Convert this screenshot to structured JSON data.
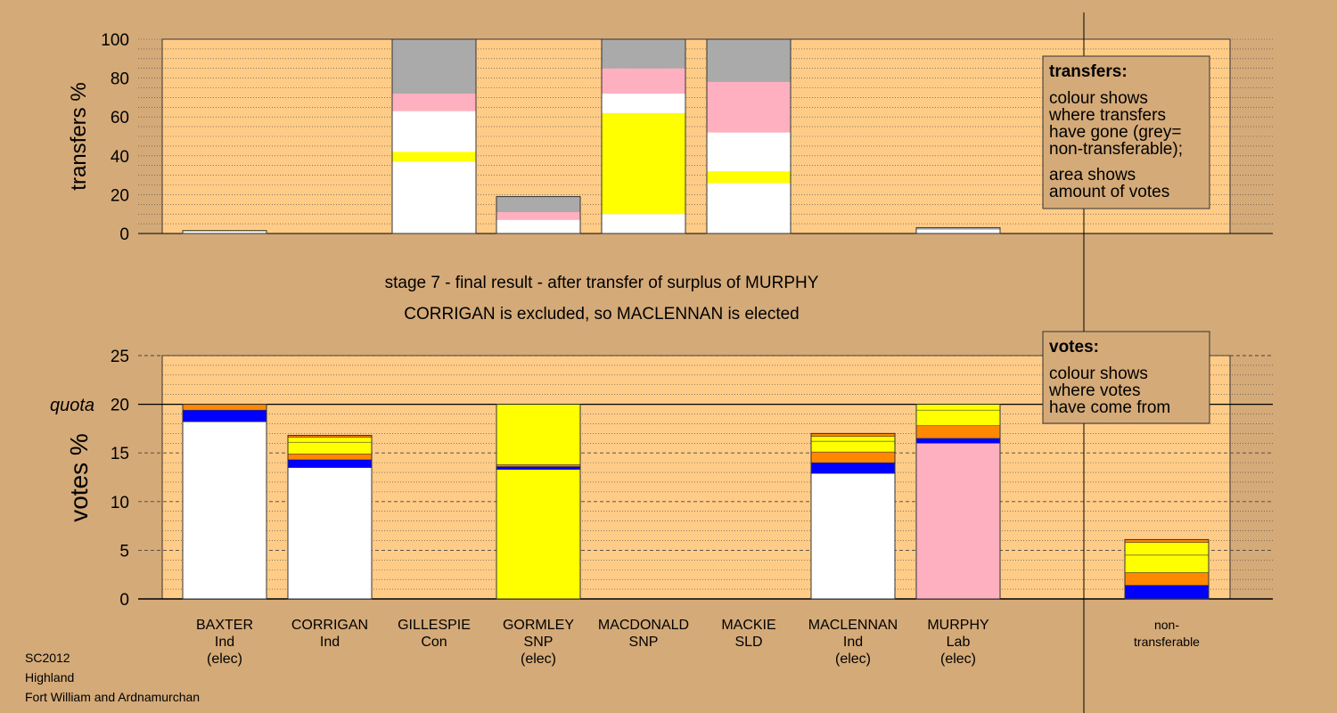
{
  "header": {
    "stage_line": "stage 7 - final result - after transfer of surplus of MURPHY",
    "result_line": "CORRIGAN is excluded, so MACLENNAN is elected"
  },
  "footer": {
    "election": "SC2012",
    "council": "Highland",
    "ward": "Fort William and Ardnamurchan"
  },
  "legend_boxes": {
    "transfers": {
      "title": "transfers:",
      "lines": [
        "colour shows",
        "where transfers",
        "have gone (grey=",
        "non-transferable);"
      ],
      "lines2": [
        "area shows",
        "amount of votes"
      ]
    },
    "votes": {
      "title": "votes:",
      "lines": [
        "colour shows",
        "where votes",
        "have come from"
      ]
    }
  },
  "colors": {
    "background": "#d4aa78",
    "plot_bg": "#ffcc88",
    "white": "#ffffff",
    "blue": "#0000ff",
    "orange": "#ff8800",
    "yellow": "#ffff00",
    "pink": "#ffb0c0",
    "grey": "#aaaaaa"
  },
  "chart_data": [
    {
      "type": "bar",
      "stacked": true,
      "ylabel": "transfers %",
      "ylim": [
        0,
        100
      ],
      "yticks": [
        "0",
        "20",
        "40",
        "60",
        "80",
        "100"
      ],
      "grid": "dotted",
      "bars": [
        {
          "candidate": "BAXTER",
          "segments": [
            {
              "color": "white",
              "from": 0,
              "to": 1
            },
            {
              "color": "yellow",
              "from": 1,
              "to": 1.5
            }
          ]
        },
        {
          "candidate": "CORRIGAN",
          "segments": []
        },
        {
          "candidate": "GILLESPIE",
          "segments": [
            {
              "color": "white",
              "from": 0,
              "to": 37
            },
            {
              "color": "yellow",
              "from": 37,
              "to": 42
            },
            {
              "color": "white",
              "from": 42,
              "to": 63
            },
            {
              "color": "pink",
              "from": 63,
              "to": 72
            },
            {
              "color": "grey",
              "from": 72,
              "to": 100
            }
          ]
        },
        {
          "candidate": "GORMLEY",
          "segments": [
            {
              "color": "white",
              "from": 0,
              "to": 7
            },
            {
              "color": "pink",
              "from": 7,
              "to": 11
            },
            {
              "color": "grey",
              "from": 11,
              "to": 19
            }
          ]
        },
        {
          "candidate": "MACDONALD",
          "segments": [
            {
              "color": "white",
              "from": 0,
              "to": 10
            },
            {
              "color": "yellow",
              "from": 10,
              "to": 62
            },
            {
              "color": "white",
              "from": 62,
              "to": 72
            },
            {
              "color": "pink",
              "from": 72,
              "to": 85
            },
            {
              "color": "grey",
              "from": 85,
              "to": 100
            }
          ]
        },
        {
          "candidate": "MACKIE",
          "segments": [
            {
              "color": "white",
              "from": 0,
              "to": 26
            },
            {
              "color": "yellow",
              "from": 26,
              "to": 32
            },
            {
              "color": "white",
              "from": 32,
              "to": 52
            },
            {
              "color": "pink",
              "from": 52,
              "to": 78
            },
            {
              "color": "grey",
              "from": 78,
              "to": 100
            }
          ]
        },
        {
          "candidate": "MACLENNAN",
          "segments": []
        },
        {
          "candidate": "MURPHY",
          "segments": [
            {
              "color": "white",
              "from": 0,
              "to": 2
            },
            {
              "color": "grey",
              "from": 2,
              "to": 3
            }
          ]
        }
      ]
    },
    {
      "type": "bar",
      "stacked": true,
      "ylabel": "votes %",
      "ylim": [
        0,
        25
      ],
      "yticks": [
        "0",
        "5",
        "10",
        "15",
        "20",
        "25"
      ],
      "quota_label": "quota",
      "quota": 20,
      "grid": "dotted",
      "bars": [
        {
          "name": "BAXTER",
          "party": "Ind",
          "status": "(elec)",
          "segments": [
            {
              "color": "white",
              "from": 0,
              "to": 18.2
            },
            {
              "color": "blue",
              "from": 18.2,
              "to": 19.4
            },
            {
              "color": "orange",
              "from": 19.4,
              "to": 20
            }
          ]
        },
        {
          "name": "CORRIGAN",
          "party": "Ind",
          "status": "",
          "segments": [
            {
              "color": "white",
              "from": 0,
              "to": 13.5
            },
            {
              "color": "blue",
              "from": 13.5,
              "to": 14.3
            },
            {
              "color": "orange",
              "from": 14.3,
              "to": 14.9
            },
            {
              "color": "yellow",
              "from": 14.9,
              "to": 16.1
            },
            {
              "color": "yellow",
              "from": 16.1,
              "to": 16.6
            },
            {
              "color": "orange",
              "from": 16.6,
              "to": 16.8
            }
          ]
        },
        {
          "name": "GILLESPIE",
          "party": "Con",
          "status": "",
          "segments": []
        },
        {
          "name": "GORMLEY",
          "party": "SNP",
          "status": "(elec)",
          "segments": [
            {
              "color": "yellow",
              "from": 0,
              "to": 13.3
            },
            {
              "color": "blue",
              "from": 13.3,
              "to": 13.6
            },
            {
              "color": "orange",
              "from": 13.6,
              "to": 13.8
            },
            {
              "color": "yellow",
              "from": 13.8,
              "to": 20
            }
          ]
        },
        {
          "name": "MACDONALD",
          "party": "SNP",
          "status": "",
          "segments": []
        },
        {
          "name": "MACKIE",
          "party": "SLD",
          "status": "",
          "segments": []
        },
        {
          "name": "MACLENNAN",
          "party": "Ind",
          "status": "(elec)",
          "segments": [
            {
              "color": "white",
              "from": 0,
              "to": 12.9
            },
            {
              "color": "blue",
              "from": 12.9,
              "to": 14.0
            },
            {
              "color": "orange",
              "from": 14.0,
              "to": 15.1
            },
            {
              "color": "yellow",
              "from": 15.1,
              "to": 16.2
            },
            {
              "color": "yellow",
              "from": 16.2,
              "to": 16.7
            },
            {
              "color": "orange",
              "from": 16.7,
              "to": 17.0
            }
          ]
        },
        {
          "name": "MURPHY",
          "party": "Lab",
          "status": "(elec)",
          "segments": [
            {
              "color": "pink",
              "from": 0,
              "to": 16.0
            },
            {
              "color": "blue",
              "from": 16.0,
              "to": 16.5
            },
            {
              "color": "orange",
              "from": 16.5,
              "to": 17.8
            },
            {
              "color": "yellow",
              "from": 17.8,
              "to": 19.4
            },
            {
              "color": "yellow",
              "from": 19.4,
              "to": 20
            }
          ]
        },
        {
          "name": "non-",
          "party": "transferable",
          "status": "",
          "segments": [
            {
              "color": "blue",
              "from": 0,
              "to": 1.4
            },
            {
              "color": "orange",
              "from": 1.4,
              "to": 2.7
            },
            {
              "color": "yellow",
              "from": 2.7,
              "to": 4.5
            },
            {
              "color": "yellow",
              "from": 4.5,
              "to": 5.8
            },
            {
              "color": "orange",
              "from": 5.8,
              "to": 6.1
            }
          ]
        }
      ]
    }
  ]
}
